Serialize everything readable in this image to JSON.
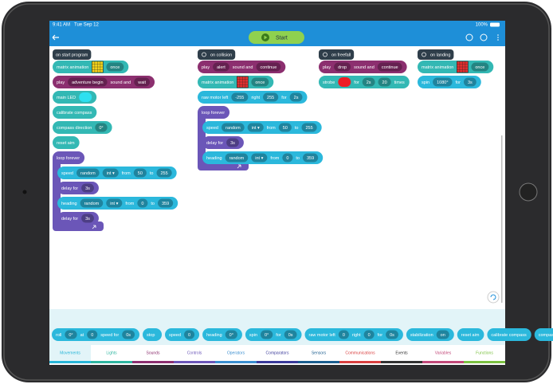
{
  "status": {
    "time": "9:41 AM",
    "date": "Tue Sep 12",
    "battery": "100%"
  },
  "toolbar": {
    "start": "Start"
  },
  "scripts": [
    {
      "hat": "on start program",
      "blocks": [
        {
          "color": "#33b8b4",
          "parts": [
            "matrix animation",
            {
              "matrix": "#f2d21b"
            },
            {
              "pill": "once"
            }
          ]
        },
        {
          "color": "#8c2f6f",
          "parts": [
            "play",
            {
              "pill": "adventure begin"
            },
            "sound and",
            {
              "pill": "wait"
            }
          ]
        },
        {
          "color": "#33b8b4",
          "parts": [
            "main LED",
            {
              "swatch": "#2de0f0"
            }
          ]
        },
        {
          "color": "#33b8b4",
          "parts": [
            "calibrate compass"
          ]
        },
        {
          "color": "#33b8b4",
          "parts": [
            "compass direction",
            {
              "pill": "0°"
            }
          ]
        },
        {
          "color": "#33b8b4",
          "parts": [
            "reset aim"
          ]
        },
        {
          "color": "#6b56b8",
          "parts": [
            "loop forever"
          ],
          "children": [
            {
              "color": "#2bb8dc",
              "parts": [
                "speed",
                {
                  "pill": "random"
                },
                {
                  "pill": "int ▾"
                },
                "from",
                {
                  "pill": "50"
                },
                "to",
                {
                  "pill": "255"
                }
              ]
            },
            {
              "color": "#6b56b8",
              "parts": [
                "delay for",
                {
                  "pill": "3s"
                }
              ]
            },
            {
              "color": "#2bb8dc",
              "parts": [
                "heading",
                {
                  "pill": "random"
                },
                {
                  "pill": "int ▾"
                },
                "from",
                {
                  "pill": "0"
                },
                "to",
                {
                  "pill": "359"
                }
              ]
            },
            {
              "color": "#6b56b8",
              "parts": [
                "delay for",
                {
                  "pill": "3s"
                }
              ]
            }
          ]
        }
      ]
    },
    {
      "hat": "on collision",
      "blocks": [
        {
          "color": "#8c2f6f",
          "parts": [
            "play",
            {
              "pill": "alert"
            },
            "sound and",
            {
              "pill": "continue"
            }
          ]
        },
        {
          "color": "#33b8b4",
          "parts": [
            "matrix animation",
            {
              "matrix": "#e03030"
            },
            {
              "pill": "once"
            }
          ]
        },
        {
          "color": "#2bb8dc",
          "parts": [
            "raw motor left",
            {
              "pill": "-255"
            },
            "right",
            {
              "pill": "255"
            },
            "for",
            {
              "pill": "2s"
            }
          ]
        },
        {
          "color": "#6b56b8",
          "parts": [
            "loop forever"
          ],
          "children": [
            {
              "color": "#2bb8dc",
              "parts": [
                "speed",
                {
                  "pill": "random"
                },
                {
                  "pill": "int ▾"
                },
                "from",
                {
                  "pill": "50"
                },
                "to",
                {
                  "pill": "255"
                }
              ]
            },
            {
              "color": "#6b56b8",
              "parts": [
                "delay for",
                {
                  "pill": "3s"
                }
              ]
            },
            {
              "color": "#2bb8dc",
              "parts": [
                "heading",
                {
                  "pill": "random"
                },
                {
                  "pill": "int ▾"
                },
                "from",
                {
                  "pill": "0"
                },
                "to",
                {
                  "pill": "359"
                }
              ]
            }
          ]
        }
      ]
    },
    {
      "hat": "on freefall",
      "blocks": [
        {
          "color": "#8c2f6f",
          "parts": [
            "play",
            {
              "pill": "drop"
            },
            "sound and",
            {
              "pill": "continue"
            }
          ]
        },
        {
          "color": "#33b8b4",
          "parts": [
            "strobe",
            {
              "swatch": "#ee1c25"
            },
            "for",
            {
              "pill": "2s"
            },
            {
              "pill": "20"
            },
            "times"
          ]
        }
      ]
    },
    {
      "hat": "on landing",
      "blocks": [
        {
          "color": "#33b8b4",
          "parts": [
            "matrix animation",
            {
              "matrix": "#e03030"
            },
            {
              "pill": "once"
            }
          ]
        },
        {
          "color": "#2bb8dc",
          "parts": [
            "spin",
            {
              "pill": "1080°"
            },
            "for",
            {
              "pill": "3s"
            }
          ]
        }
      ]
    }
  ],
  "palette": [
    {
      "parts": [
        "roll",
        {
          "pill": "0°"
        },
        "at",
        {
          "pill": "0"
        },
        "speed for",
        {
          "pill": "0s"
        }
      ]
    },
    {
      "parts": [
        "stop"
      ]
    },
    {
      "parts": [
        "speed",
        {
          "pill": "0"
        }
      ]
    },
    {
      "parts": [
        "heading",
        {
          "pill": "0°"
        }
      ]
    },
    {
      "parts": [
        "spin",
        {
          "pill": "0°"
        },
        "for",
        {
          "pill": "0s"
        }
      ]
    },
    {
      "parts": [
        "raw motor left",
        {
          "pill": "0"
        },
        "right",
        {
          "pill": "0"
        },
        "for",
        {
          "pill": "0s"
        }
      ]
    },
    {
      "parts": [
        "stabilization",
        {
          "pill": "on"
        }
      ]
    },
    {
      "parts": [
        "reset aim"
      ]
    },
    {
      "parts": [
        "calibrate compass"
      ]
    },
    {
      "parts": [
        "compass"
      ]
    }
  ],
  "tabs": [
    {
      "label": "Movements",
      "color": "#29b6d8"
    },
    {
      "label": "Lights",
      "color": "#2fb5a0"
    },
    {
      "label": "Sounds",
      "color": "#8c2f6f"
    },
    {
      "label": "Controls",
      "color": "#6b56b8"
    },
    {
      "label": "Operators",
      "color": "#3b8fd0"
    },
    {
      "label": "Comparators",
      "color": "#3a3a9a"
    },
    {
      "label": "Sensors",
      "color": "#1b5e8f"
    },
    {
      "label": "Communications",
      "color": "#d94040"
    },
    {
      "label": "Events",
      "color": "#333333"
    },
    {
      "label": "Variables",
      "color": "#c24a7a"
    },
    {
      "label": "Functions",
      "color": "#7cc142"
    }
  ]
}
